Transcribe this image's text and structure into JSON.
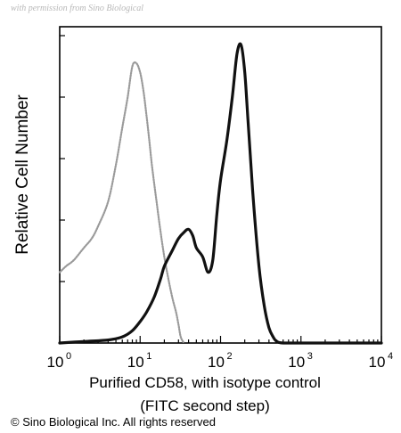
{
  "watermark": "with permission from Sino Biological",
  "copyright": "© Sino Biological Inc. All rights reserved",
  "chart_data": {
    "type": "line",
    "x_scale": "log",
    "xlim": [
      1,
      10000
    ],
    "ylim": [
      0,
      100
    ],
    "xlabel_lines": [
      "Purified CD58, with isotype control",
      "(FITC second step)"
    ],
    "ylabel": "Relative Cell Number",
    "x_ticks": [
      {
        "value": 1,
        "base": "10",
        "exp": "0"
      },
      {
        "value": 10,
        "base": "10",
        "exp": "1"
      },
      {
        "value": 100,
        "base": "10",
        "exp": "2"
      },
      {
        "value": 1000,
        "base": "10",
        "exp": "3"
      },
      {
        "value": 10000,
        "base": "10",
        "exp": "4"
      }
    ],
    "y_tick_values": [
      0,
      20,
      40,
      60,
      80,
      100
    ],
    "series": [
      {
        "style": "dotted-gray",
        "color": "#9a9a9a",
        "x": [
          1,
          1.2,
          1.5,
          2,
          2.5,
          3,
          4,
          5,
          6,
          7,
          8,
          9,
          10,
          11,
          12,
          13,
          14,
          16,
          18,
          20,
          22,
          25,
          28,
          30,
          32,
          35
        ],
        "y": [
          23,
          25,
          27,
          31,
          34,
          38,
          46,
          58,
          70,
          80,
          90,
          91,
          88,
          82,
          74,
          66,
          58,
          46,
          36,
          28,
          22,
          15,
          10,
          6,
          2,
          0
        ]
      },
      {
        "style": "solid-black",
        "color": "#111111",
        "x": [
          1,
          2,
          4,
          6,
          8,
          10,
          12,
          15,
          18,
          20,
          25,
          30,
          35,
          40,
          45,
          50,
          60,
          70,
          80,
          90,
          100,
          120,
          140,
          160,
          180,
          200,
          220,
          250,
          300,
          350,
          400,
          450,
          500,
          600,
          1000,
          10000
        ],
        "y": [
          0,
          0.5,
          1,
          2,
          4,
          7,
          10,
          15,
          21,
          25,
          30,
          34,
          36,
          37,
          35,
          31,
          28,
          23,
          27,
          42,
          53,
          66,
          80,
          94,
          97,
          88,
          72,
          50,
          25,
          12,
          5,
          2,
          0.5,
          0,
          0,
          0
        ]
      }
    ]
  }
}
